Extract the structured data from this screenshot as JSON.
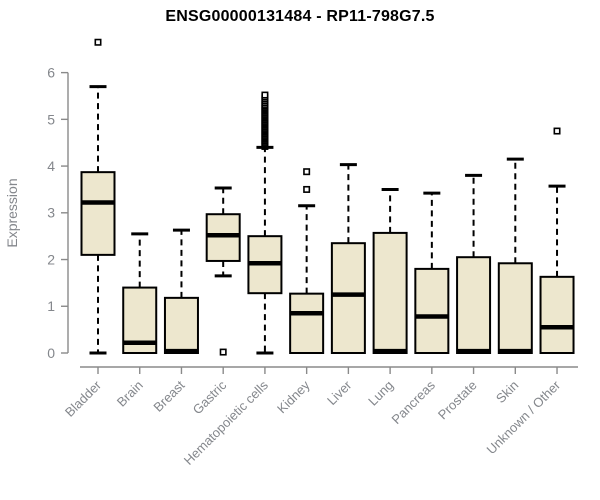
{
  "style": {
    "background": "#ffffff",
    "box_fill": "#ede7ce",
    "box_stroke": "#000000",
    "median_color": "#000000",
    "whisker_color": "#000000",
    "axis_line_color": "#8a8a8a",
    "axis_text_color": "#84878c",
    "title_color": "#000000"
  },
  "chart_data": {
    "type": "boxplot",
    "title": "ENSG00000131484 - RP11-798G7.5",
    "ylabel": "Expression",
    "xlabel": "",
    "ylim": [
      0,
      6.8
    ],
    "yticks": [
      0,
      1,
      2,
      3,
      4,
      5,
      6
    ],
    "grid": false,
    "legend": false,
    "categories": [
      "Bladder",
      "Brain",
      "Breast",
      "Gastric",
      "Hematopoietic cells",
      "Kidney",
      "Liver",
      "Lung",
      "Pancreas",
      "Prostate",
      "Skin",
      "Unknown / Other"
    ],
    "series": [
      {
        "name": "Bladder",
        "whisker_low": 0.0,
        "q1": 2.1,
        "median": 3.22,
        "q3": 3.87,
        "whisker_high": 5.7,
        "outliers": [
          6.65
        ]
      },
      {
        "name": "Brain",
        "whisker_low": 0.0,
        "q1": 0.0,
        "median": 0.22,
        "q3": 1.4,
        "whisker_high": 2.55,
        "outliers": []
      },
      {
        "name": "Breast",
        "whisker_low": 0.0,
        "q1": 0.0,
        "median": 0.04,
        "q3": 1.18,
        "whisker_high": 2.63,
        "outliers": []
      },
      {
        "name": "Gastric",
        "whisker_low": 1.65,
        "q1": 1.97,
        "median": 2.52,
        "q3": 2.97,
        "whisker_high": 3.53,
        "outliers": [
          0.02
        ]
      },
      {
        "name": "Hematopoietic cells",
        "whisker_low": 0.0,
        "q1": 1.28,
        "median": 1.92,
        "q3": 2.5,
        "whisker_high": 4.4,
        "outliers": [
          4.42,
          4.45,
          4.48,
          4.51,
          4.54,
          4.57,
          4.6,
          4.63,
          4.66,
          4.69,
          4.72,
          4.75,
          4.78,
          4.81,
          4.84,
          4.87,
          4.9,
          4.93,
          4.96,
          4.99,
          5.02,
          5.05,
          5.08,
          5.11,
          5.14,
          5.17,
          5.2,
          5.23,
          5.26,
          5.29,
          5.32,
          5.36,
          5.4,
          5.44,
          5.48,
          5.52
        ]
      },
      {
        "name": "Kidney",
        "whisker_low": 0.0,
        "q1": 0.0,
        "median": 0.85,
        "q3": 1.27,
        "whisker_high": 3.15,
        "outliers": [
          3.5,
          3.88
        ]
      },
      {
        "name": "Liver",
        "whisker_low": 0.0,
        "q1": 0.0,
        "median": 1.25,
        "q3": 2.35,
        "whisker_high": 4.03,
        "outliers": []
      },
      {
        "name": "Lung",
        "whisker_low": 0.0,
        "q1": 0.0,
        "median": 0.04,
        "q3": 2.57,
        "whisker_high": 3.5,
        "outliers": []
      },
      {
        "name": "Pancreas",
        "whisker_low": 0.0,
        "q1": 0.0,
        "median": 0.78,
        "q3": 1.8,
        "whisker_high": 3.42,
        "outliers": []
      },
      {
        "name": "Prostate",
        "whisker_low": 0.0,
        "q1": 0.0,
        "median": 0.04,
        "q3": 2.05,
        "whisker_high": 3.8,
        "outliers": []
      },
      {
        "name": "Skin",
        "whisker_low": 0.0,
        "q1": 0.0,
        "median": 0.04,
        "q3": 1.92,
        "whisker_high": 4.15,
        "outliers": []
      },
      {
        "name": "Unknown / Other",
        "whisker_low": 0.0,
        "q1": 0.0,
        "median": 0.55,
        "q3": 1.63,
        "whisker_high": 3.57,
        "outliers": [
          4.75
        ]
      }
    ]
  }
}
